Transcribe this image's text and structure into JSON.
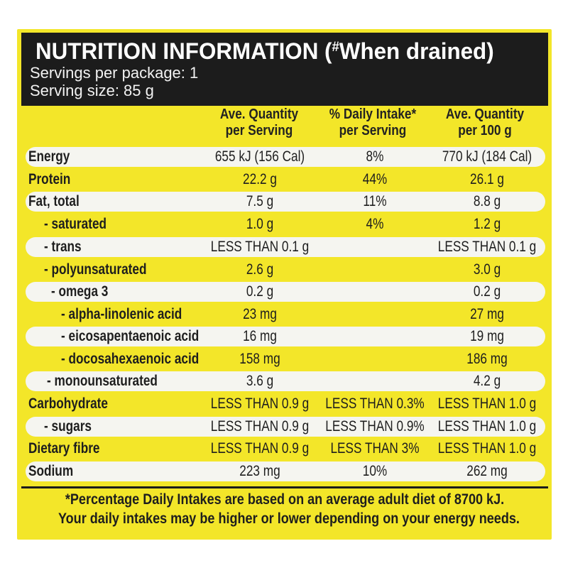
{
  "header": {
    "title": "NUTRITION INFORMATION (",
    "title_mark": "#",
    "title_tail": "When drained)",
    "servings_per_package": "Servings per package: 1",
    "serving_size": "Serving size: 85 g"
  },
  "columns": [
    "Ave. Quantity\nper Serving",
    "% Daily Intake*\nper Serving",
    "Ave. Quantity\nper 100 g"
  ],
  "rows": [
    {
      "label": "Energy",
      "per_serving": "655 kJ (156 Cal)",
      "daily_intake": "8%",
      "per_100g": "770 kJ (184 Cal)"
    },
    {
      "label": "Protein",
      "per_serving": "22.2 g",
      "daily_intake": "44%",
      "per_100g": "26.1 g"
    },
    {
      "label": "Fat, total",
      "per_serving": "7.5 g",
      "daily_intake": "11%",
      "per_100g": "8.8 g"
    },
    {
      "label": "- saturated",
      "per_serving": "1.0 g",
      "daily_intake": "4%",
      "per_100g": "1.2 g"
    },
    {
      "label": "- trans",
      "per_serving": "LESS THAN 0.1 g",
      "daily_intake": "",
      "per_100g": "LESS THAN 0.1 g"
    },
    {
      "label": "- polyunsaturated",
      "per_serving": "2.6 g",
      "daily_intake": "",
      "per_100g": "3.0 g"
    },
    {
      "label": "- omega 3",
      "per_serving": "0.2 g",
      "daily_intake": "",
      "per_100g": "0.2 g"
    },
    {
      "label": "- alpha-linolenic acid",
      "per_serving": "23 mg",
      "daily_intake": "",
      "per_100g": "27 mg"
    },
    {
      "label": "- eicosapentaenoic acid",
      "per_serving": "16 mg",
      "daily_intake": "",
      "per_100g": "19 mg"
    },
    {
      "label": "- docosahexaenoic acid",
      "per_serving": "158 mg",
      "daily_intake": "",
      "per_100g": "186 mg"
    },
    {
      "label": "- monounsaturated",
      "per_serving": "3.6 g",
      "daily_intake": "",
      "per_100g": "4.2 g"
    },
    {
      "label": "Carbohydrate",
      "per_serving": "LESS THAN 0.9 g",
      "daily_intake": "LESS THAN 0.3%",
      "per_100g": "LESS THAN 1.0 g"
    },
    {
      "label": "- sugars",
      "per_serving": "LESS THAN 0.9 g",
      "daily_intake": "LESS THAN 0.9%",
      "per_100g": "LESS THAN 1.0 g"
    },
    {
      "label": "Dietary fibre",
      "per_serving": "LESS THAN 0.9 g",
      "daily_intake": "LESS THAN 3%",
      "per_100g": "LESS THAN 1.0 g"
    },
    {
      "label": "Sodium",
      "per_serving": "223 mg",
      "daily_intake": "10%",
      "per_100g": "262 mg"
    }
  ],
  "footer": {
    "line1": "*Percentage Daily Intakes are based on an average adult diet of 8700 kJ.",
    "line2": "Your daily intakes may be higher or lower depending on your energy needs."
  },
  "colors": {
    "panel": "#f3e629",
    "header": "#1c1c1c",
    "stripe": "#f5f5f0"
  }
}
